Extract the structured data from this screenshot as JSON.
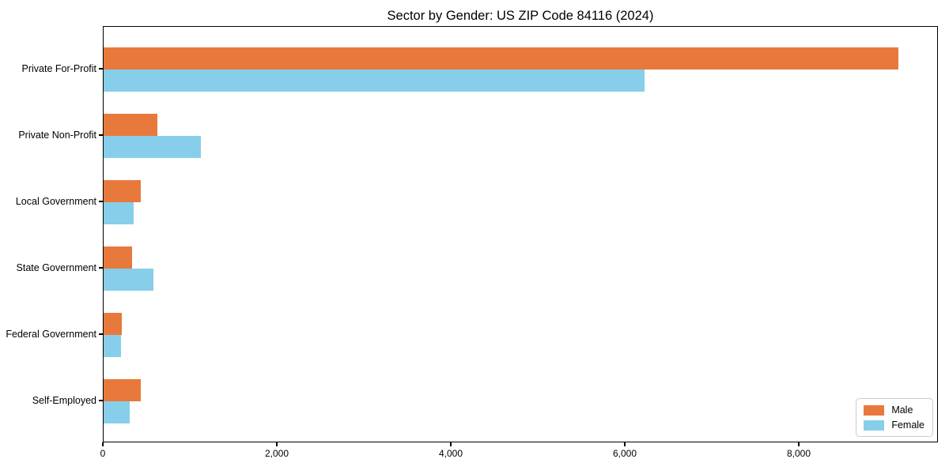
{
  "chart_data": {
    "type": "bar",
    "orientation": "horizontal",
    "title": "Sector by Gender: US ZIP Code 84116 (2024)",
    "categories": [
      "Private For-Profit",
      "Private Non-Profit",
      "Local Government",
      "State Government",
      "Federal Government",
      "Self-Employed"
    ],
    "series": [
      {
        "name": "Male",
        "color": "#e8793c",
        "values": [
          9140,
          620,
          430,
          330,
          205,
          430
        ]
      },
      {
        "name": "Female",
        "color": "#87ceeb",
        "values": [
          6220,
          1120,
          345,
          570,
          200,
          300
        ]
      }
    ],
    "xlabel": "",
    "ylabel": "",
    "xlim": [
      0,
      9600
    ],
    "xticks": [
      0,
      2000,
      4000,
      6000,
      8000
    ],
    "xtick_labels": [
      "0",
      "2,000",
      "4,000",
      "6,000",
      "8,000"
    ],
    "grid": false,
    "legend_position": "lower right",
    "background_color": "#ffffff",
    "border_color": "#000000"
  }
}
